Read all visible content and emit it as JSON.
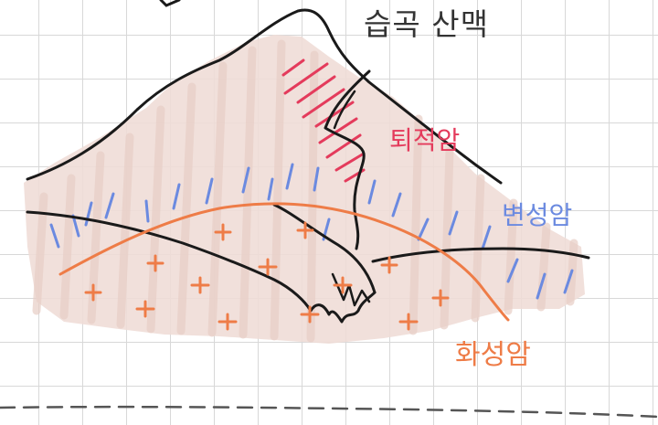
{
  "labels": {
    "fold_mountain": "습곡 산맥",
    "sedimentary": "퇴적암",
    "metamorphic": "변성암",
    "igneous": "화성암"
  },
  "colors": {
    "background": "#ffffff",
    "grid": "#d8d8d8",
    "mountain_fill": "#efddd7",
    "outline": "#1a1a1a",
    "sedimentary": "#e43b5c",
    "metamorphic": "#6b8ae0",
    "igneous": "#ee7c47",
    "fold_mountain_text": "#333333",
    "ground_line": "#555555"
  }
}
